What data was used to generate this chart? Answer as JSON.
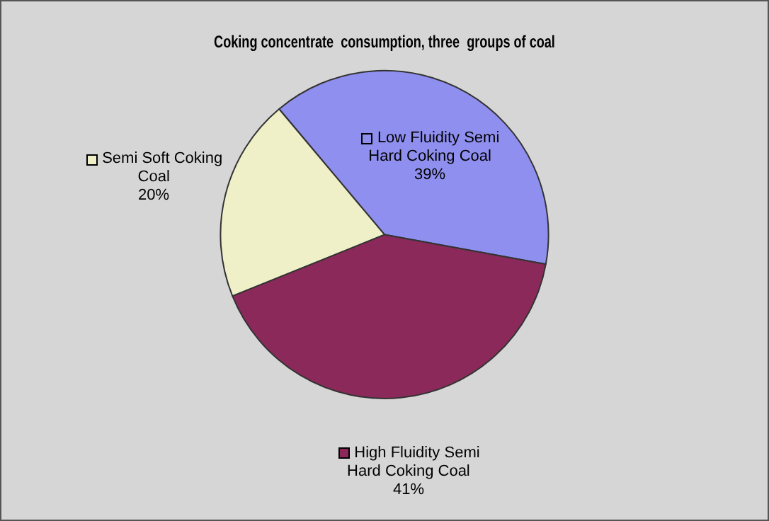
{
  "chart_data": {
    "type": "pie",
    "title": "Coking concentrate  consumption, three  groups of coal",
    "categories": [
      "Low Fluidity Semi Hard Coking Coal",
      "High Fluidity Semi Hard Coking Coal",
      "Semi Soft Coking Coal"
    ],
    "values": [
      39,
      41,
      20
    ],
    "colors": [
      "#8f8ff0",
      "#8b2a5a",
      "#efefc8"
    ],
    "value_labels": [
      "39%",
      "41%",
      "20%"
    ],
    "legend": "left"
  }
}
